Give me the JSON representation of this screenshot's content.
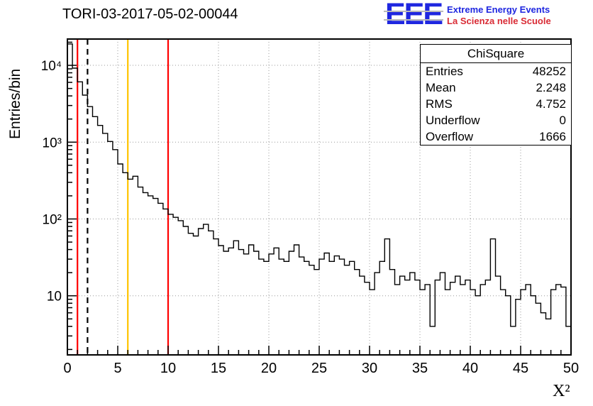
{
  "title": "TORI-03-2017-05-02-00044",
  "logo": {
    "eee": "EEE",
    "line1": "Extreme Energy Events",
    "line2": "La Scienza nelle Scuole",
    "blue": "#1f27e0",
    "red": "#d92b35"
  },
  "stats": {
    "title": "ChiSquare",
    "rows": [
      {
        "label": "Entries",
        "value": "48252"
      },
      {
        "label": "Mean",
        "value": "2.248"
      },
      {
        "label": "RMS",
        "value": "4.752"
      },
      {
        "label": "Underflow",
        "value": "0"
      },
      {
        "label": "Overflow",
        "value": "1666"
      }
    ]
  },
  "chart_data": {
    "type": "bar",
    "style": "step-histogram",
    "title": "TORI-03-2017-05-02-00044",
    "xlabel": "X²",
    "ylabel": "Entries/bin",
    "xlim": [
      0,
      50
    ],
    "ylim": [
      1.7,
      22000
    ],
    "ylog": true,
    "grid": true,
    "bin_start": 0,
    "bin_width": 0.5,
    "values": [
      19000,
      9200,
      6100,
      4100,
      2900,
      2150,
      1650,
      1300,
      1020,
      800,
      520,
      400,
      330,
      360,
      260,
      220,
      200,
      185,
      160,
      135,
      115,
      105,
      95,
      80,
      65,
      60,
      75,
      85,
      70,
      55,
      45,
      38,
      42,
      52,
      40,
      35,
      46,
      38,
      30,
      28,
      35,
      42,
      30,
      28,
      38,
      46,
      32,
      28,
      25,
      22,
      30,
      36,
      28,
      33,
      30,
      25,
      28,
      22,
      18,
      15,
      12,
      20,
      28,
      55,
      22,
      14,
      18,
      16,
      20,
      16,
      12,
      14,
      4,
      16,
      20,
      12,
      15,
      18,
      14,
      16,
      12,
      10,
      14,
      16,
      55,
      18,
      12,
      10,
      4,
      9,
      12,
      14,
      10,
      8,
      6,
      5,
      12,
      14,
      13,
      4
    ],
    "x_ticks": [
      0,
      5,
      10,
      15,
      20,
      25,
      30,
      35,
      40,
      45,
      50
    ],
    "y_ticks": [
      {
        "v": 10,
        "label": "10"
      },
      {
        "v": 100,
        "label": "10²"
      },
      {
        "v": 1000,
        "label": "10³"
      },
      {
        "v": 10000,
        "label": "10⁴"
      }
    ],
    "line_color": "#000000",
    "vlines": [
      {
        "x": 1,
        "color": "#ff0000",
        "dash": ""
      },
      {
        "x": 2,
        "color": "#000000",
        "dash": "8,6"
      },
      {
        "x": 6,
        "color": "#ffc400",
        "dash": ""
      },
      {
        "x": 10,
        "color": "#ff0000",
        "dash": ""
      }
    ]
  }
}
